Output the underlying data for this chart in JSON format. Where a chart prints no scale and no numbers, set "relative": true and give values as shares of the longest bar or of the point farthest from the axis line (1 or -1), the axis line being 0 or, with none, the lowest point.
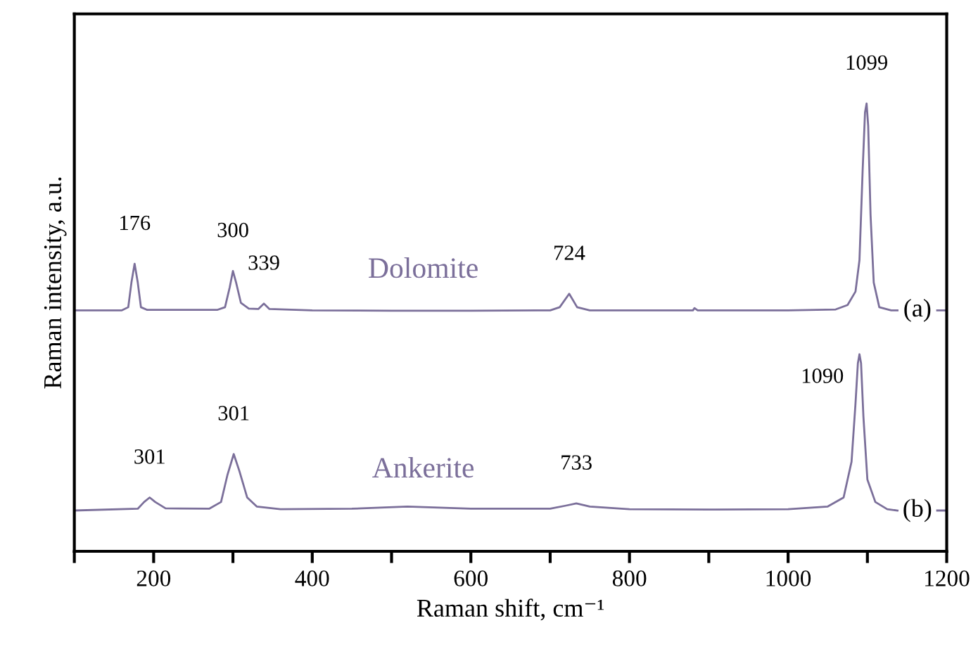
{
  "chart_data": {
    "type": "line",
    "relative": true,
    "xlabel": "Raman shift, cm⁻¹",
    "ylabel": "Raman intensity, a.u.",
    "xlim": [
      100,
      1200
    ],
    "xticks": [
      {
        "value": 100,
        "label": null
      },
      200,
      {
        "value": 300,
        "label": null
      },
      400,
      {
        "value": 500,
        "label": null
      },
      600,
      {
        "value": 700,
        "label": null
      },
      800,
      {
        "value": 900,
        "label": null
      },
      1000,
      {
        "value": 1100,
        "label": null
      },
      1200
    ],
    "tick_labels": "x",
    "grid": false,
    "legend": false,
    "marker": "none",
    "line_style": "solid",
    "series": [
      {
        "name": "Dolomite",
        "color": "#7b6f9a",
        "x": [
          100,
          160,
          168,
          172,
          176,
          180,
          184,
          192,
          280,
          290,
          296,
          300,
          304,
          310,
          320,
          332,
          339,
          346,
          400,
          500,
          600,
          700,
          712,
          724,
          734,
          750,
          880,
          882,
          886,
          1000,
          1060,
          1075,
          1085,
          1090,
          1094,
          1097,
          1099,
          1101,
          1104,
          1108,
          1115,
          1130,
          1138,
          1160,
          1188,
          1200
        ],
        "values": [
          0.538,
          0.538,
          0.545,
          0.6,
          0.642,
          0.6,
          0.545,
          0.539,
          0.539,
          0.545,
          0.59,
          0.626,
          0.6,
          0.555,
          0.542,
          0.541,
          0.553,
          0.541,
          0.538,
          0.537,
          0.537,
          0.538,
          0.545,
          0.575,
          0.545,
          0.538,
          0.538,
          0.543,
          0.538,
          0.538,
          0.54,
          0.55,
          0.58,
          0.65,
          0.85,
          0.98,
          1,
          0.95,
          0.75,
          0.6,
          0.545,
          0.538,
          0.538,
          null,
          0.538,
          0.538
        ]
      },
      {
        "name": "Ankerite",
        "color": "#7b6f9a",
        "x": [
          100,
          180,
          188,
          195,
          202,
          215,
          270,
          285,
          293,
          301,
          308,
          318,
          330,
          360,
          450,
          520,
          600,
          700,
          720,
          733,
          750,
          800,
          900,
          1000,
          1050,
          1070,
          1080,
          1085,
          1088,
          1090,
          1092,
          1095,
          1100,
          1110,
          1125,
          1138,
          1160,
          1188,
          1200
        ],
        "values": [
          0.091,
          0.095,
          0.11,
          0.12,
          0.11,
          0.096,
          0.095,
          0.11,
          0.17,
          0.217,
          0.18,
          0.12,
          0.1,
          0.094,
          0.095,
          0.1,
          0.095,
          0.095,
          0.102,
          0.107,
          0.1,
          0.094,
          0.093,
          0.094,
          0.1,
          0.12,
          0.2,
          0.33,
          0.42,
          0.44,
          0.42,
          0.3,
          0.16,
          0.11,
          0.094,
          0.091,
          null,
          0.091,
          0.091
        ]
      }
    ],
    "annotations": [
      {
        "text": "176",
        "x": 176,
        "y": 0.642
      },
      {
        "text": "300",
        "x": 300,
        "y": 0.626
      },
      {
        "text": "339",
        "x": 339,
        "y": 0.553
      },
      {
        "text": "724",
        "x": 724,
        "y": 0.575
      },
      {
        "text": "1099",
        "x": 1099,
        "y": 1
      },
      "(a)",
      {
        "text": "301",
        "x": 195,
        "y": 0.12
      },
      {
        "text": "301",
        "x": 301,
        "y": 0.217
      },
      {
        "text": "733",
        "x": 733,
        "y": 0.107
      },
      {
        "text": "1090",
        "x": 1090,
        "y": 0.44
      },
      "(b)"
    ]
  }
}
